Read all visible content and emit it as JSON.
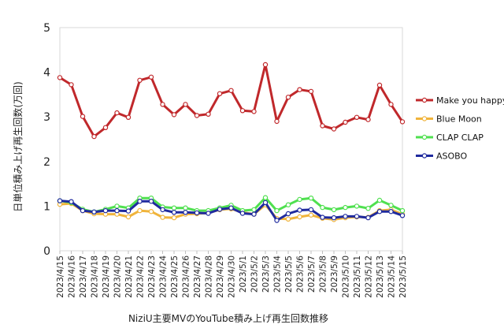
{
  "chart_data": {
    "type": "line",
    "title": "",
    "xlabel": "NiziU主要MVのYouTube積み上げ再生回数推移",
    "ylabel": "日単位積み上げ再生回数(万回)",
    "ylim": [
      0,
      5
    ],
    "yticks": [
      "0",
      "1",
      "2",
      "3",
      "4",
      "5"
    ],
    "grid": "off",
    "legend_position": "right",
    "categories": [
      "2023/4/15",
      "2023/4/16",
      "2023/4/17",
      "2023/4/18",
      "2023/4/19",
      "2023/4/20",
      "2023/4/21",
      "2023/4/22",
      "2023/4/23",
      "2023/4/24",
      "2023/4/25",
      "2023/4/26",
      "2023/4/27",
      "2023/4/28",
      "2023/4/29",
      "2023/4/30",
      "2023/5/1",
      "2023/5/2",
      "2023/5/3",
      "2023/5/4",
      "2023/5/5",
      "2023/5/6",
      "2023/5/7",
      "2023/5/8",
      "2023/5/9",
      "2023/5/10",
      "2023/5/11",
      "2023/5/12",
      "2023/5/13",
      "2023/5/14",
      "2023/5/15"
    ],
    "series": [
      {
        "name": "Make you happy",
        "color": "#c0282b",
        "values": [
          3.88,
          3.72,
          3.01,
          2.56,
          2.76,
          3.09,
          2.99,
          3.82,
          3.89,
          3.28,
          3.05,
          3.28,
          3.03,
          3.06,
          3.52,
          3.59,
          3.14,
          3.12,
          4.17,
          2.9,
          3.44,
          3.61,
          3.57,
          2.8,
          2.73,
          2.88,
          2.99,
          2.94,
          3.71,
          3.28,
          2.89
        ]
      },
      {
        "name": "Blue Moon",
        "color": "#f0b43c",
        "values": [
          1.04,
          1.06,
          0.9,
          0.83,
          0.82,
          0.82,
          0.76,
          0.9,
          0.88,
          0.75,
          0.74,
          0.82,
          0.83,
          0.85,
          0.92,
          0.94,
          0.86,
          0.82,
          1.03,
          0.72,
          0.71,
          0.76,
          0.8,
          0.73,
          0.7,
          0.74,
          0.76,
          0.75,
          0.9,
          0.92,
          0.82
        ]
      },
      {
        "name": "CLAP CLAP",
        "color": "#4fe04f",
        "values": [
          1.12,
          1.08,
          0.93,
          0.87,
          0.93,
          1.0,
          0.96,
          1.18,
          1.18,
          0.98,
          0.96,
          0.96,
          0.9,
          0.9,
          0.96,
          1.02,
          0.9,
          0.92,
          1.19,
          0.9,
          1.03,
          1.15,
          1.18,
          0.97,
          0.92,
          0.97,
          1.0,
          0.95,
          1.13,
          1.02,
          0.9
        ]
      },
      {
        "name": "ASOBO",
        "color": "#1f2a9e",
        "values": [
          1.12,
          1.1,
          0.9,
          0.87,
          0.9,
          0.9,
          0.89,
          1.11,
          1.11,
          0.92,
          0.86,
          0.86,
          0.85,
          0.84,
          0.93,
          0.96,
          0.84,
          0.82,
          1.08,
          0.68,
          0.83,
          0.91,
          0.92,
          0.75,
          0.74,
          0.77,
          0.77,
          0.74,
          0.88,
          0.88,
          0.79
        ]
      }
    ]
  }
}
